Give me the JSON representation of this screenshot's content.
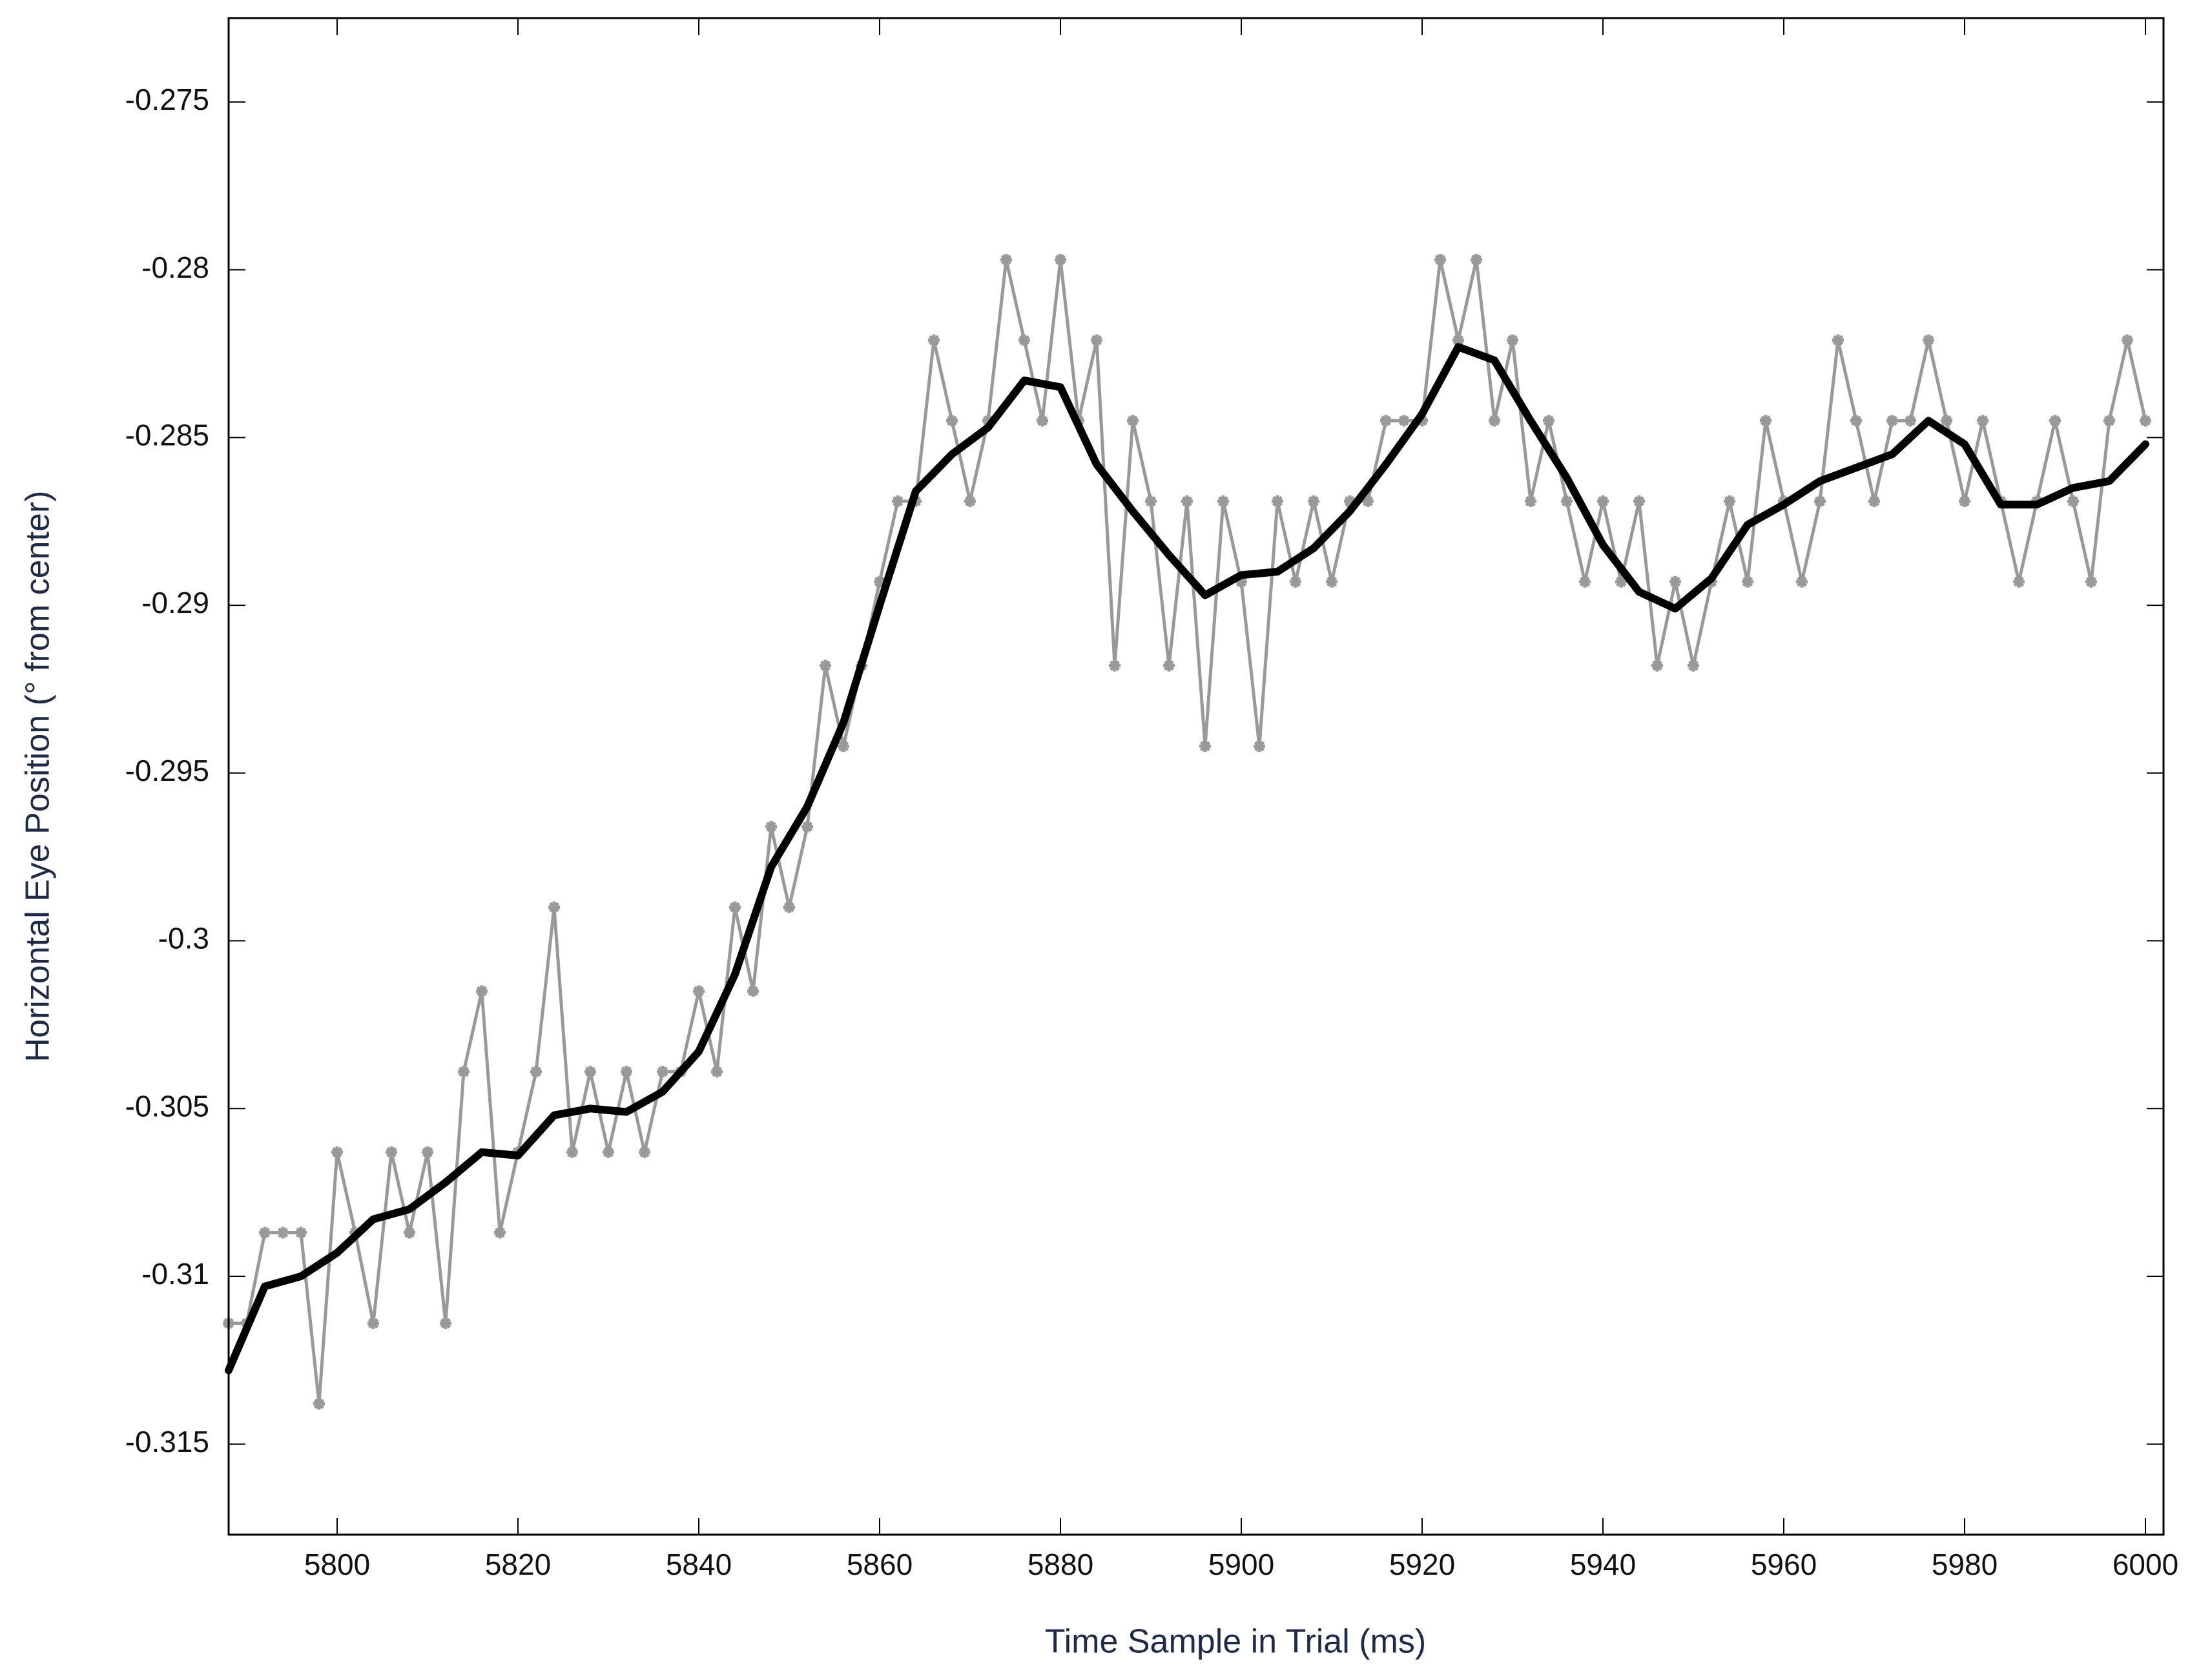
{
  "chart_data": {
    "type": "line",
    "xlabel": "Time Sample in Trial (ms)",
    "ylabel": "Horizontal Eye Position (° from center)",
    "xlim": [
      5788,
      6002
    ],
    "ylim": [
      -0.3177,
      -0.2725
    ],
    "xticks": [
      5800,
      5820,
      5840,
      5860,
      5880,
      5900,
      5920,
      5940,
      5960,
      5980,
      6000
    ],
    "yticks": [
      -0.275,
      -0.28,
      -0.285,
      -0.29,
      -0.295,
      -0.3,
      -0.305,
      -0.31,
      -0.315
    ],
    "grid": false,
    "series": [
      {
        "color": "#999999",
        "marker": "star",
        "x": [
          5788,
          5790,
          5792,
          5794,
          5796,
          5798,
          5800,
          5802,
          5804,
          5806,
          5808,
          5810,
          5812,
          5814,
          5816,
          5818,
          5820,
          5822,
          5824,
          5826,
          5828,
          5830,
          5832,
          5834,
          5836,
          5838,
          5840,
          5842,
          5844,
          5846,
          5848,
          5850,
          5852,
          5854,
          5856,
          5858,
          5860,
          5862,
          5864,
          5866,
          5868,
          5870,
          5872,
          5874,
          5876,
          5878,
          5880,
          5882,
          5884,
          5886,
          5888,
          5890,
          5892,
          5894,
          5896,
          5898,
          5900,
          5902,
          5904,
          5906,
          5908,
          5910,
          5912,
          5914,
          5916,
          5918,
          5920,
          5922,
          5924,
          5926,
          5928,
          5930,
          5932,
          5934,
          5936,
          5938,
          5940,
          5942,
          5944,
          5946,
          5948,
          5950,
          5952,
          5954,
          5956,
          5958,
          5960,
          5962,
          5964,
          5966,
          5968,
          5970,
          5972,
          5974,
          5976,
          5978,
          5980,
          5982,
          5984,
          5986,
          5988,
          5990,
          5992,
          5994,
          5996,
          5998,
          6000
        ],
        "values": [
          -0.3114,
          -0.3114,
          -0.3087,
          -0.3087,
          -0.3087,
          -0.3138,
          -0.3063,
          -0.3087,
          -0.3114,
          -0.3063,
          -0.3087,
          -0.3063,
          -0.3114,
          -0.3039,
          -0.3015,
          -0.3087,
          -0.3063,
          -0.3039,
          -0.299,
          -0.3063,
          -0.3039,
          -0.3063,
          -0.3039,
          -0.3063,
          -0.3039,
          -0.3039,
          -0.3015,
          -0.3039,
          -0.299,
          -0.3015,
          -0.2966,
          -0.299,
          -0.2966,
          -0.2918,
          -0.2942,
          -0.2918,
          -0.2893,
          -0.2869,
          -0.2869,
          -0.2821,
          -0.2845,
          -0.2869,
          -0.2845,
          -0.2797,
          -0.2821,
          -0.2845,
          -0.2797,
          -0.2845,
          -0.2821,
          -0.2918,
          -0.2845,
          -0.2869,
          -0.2918,
          -0.2869,
          -0.2942,
          -0.2869,
          -0.2893,
          -0.2942,
          -0.2869,
          -0.2893,
          -0.2869,
          -0.2893,
          -0.2869,
          -0.2869,
          -0.2845,
          -0.2845,
          -0.2845,
          -0.2797,
          -0.2821,
          -0.2797,
          -0.2845,
          -0.2821,
          -0.2869,
          -0.2845,
          -0.2869,
          -0.2893,
          -0.2869,
          -0.2893,
          -0.2869,
          -0.2918,
          -0.2893,
          -0.2918,
          -0.2893,
          -0.2869,
          -0.2893,
          -0.2845,
          -0.2869,
          -0.2893,
          -0.2869,
          -0.2821,
          -0.2845,
          -0.2869,
          -0.2845,
          -0.2845,
          -0.2821,
          -0.2845,
          -0.2869,
          -0.2845,
          -0.2869,
          -0.2893,
          -0.2869,
          -0.2845,
          -0.2869,
          -0.2893,
          -0.2845,
          -0.2821,
          -0.2845
        ]
      },
      {
        "color": "#000000",
        "x": [
          5788,
          5792,
          5796,
          5800,
          5804,
          5808,
          5812,
          5816,
          5820,
          5824,
          5828,
          5832,
          5836,
          5840,
          5844,
          5848,
          5852,
          5856,
          5860,
          5864,
          5868,
          5872,
          5876,
          5880,
          5884,
          5888,
          5892,
          5896,
          5900,
          5904,
          5908,
          5912,
          5916,
          5920,
          5924,
          5928,
          5932,
          5936,
          5940,
          5944,
          5948,
          5952,
          5956,
          5960,
          5964,
          5968,
          5972,
          5976,
          5980,
          5984,
          5988,
          5992,
          5996,
          6000
        ],
        "values": [
          -0.3128,
          -0.3103,
          -0.31,
          -0.3093,
          -0.3083,
          -0.308,
          -0.3072,
          -0.3063,
          -0.3064,
          -0.3052,
          -0.305,
          -0.3051,
          -0.3045,
          -0.3033,
          -0.301,
          -0.2978,
          -0.296,
          -0.2935,
          -0.29,
          -0.2866,
          -0.2855,
          -0.2847,
          -0.2833,
          -0.2835,
          -0.2858,
          -0.2872,
          -0.2885,
          -0.2897,
          -0.2891,
          -0.289,
          -0.2883,
          -0.2872,
          -0.2858,
          -0.2843,
          -0.2823,
          -0.2827,
          -0.2845,
          -0.2862,
          -0.2882,
          -0.2896,
          -0.2901,
          -0.2892,
          -0.2876,
          -0.287,
          -0.2863,
          -0.2859,
          -0.2855,
          -0.2845,
          -0.2852,
          -0.287,
          -0.287,
          -0.2865,
          -0.2863,
          -0.2852
        ]
      }
    ]
  }
}
